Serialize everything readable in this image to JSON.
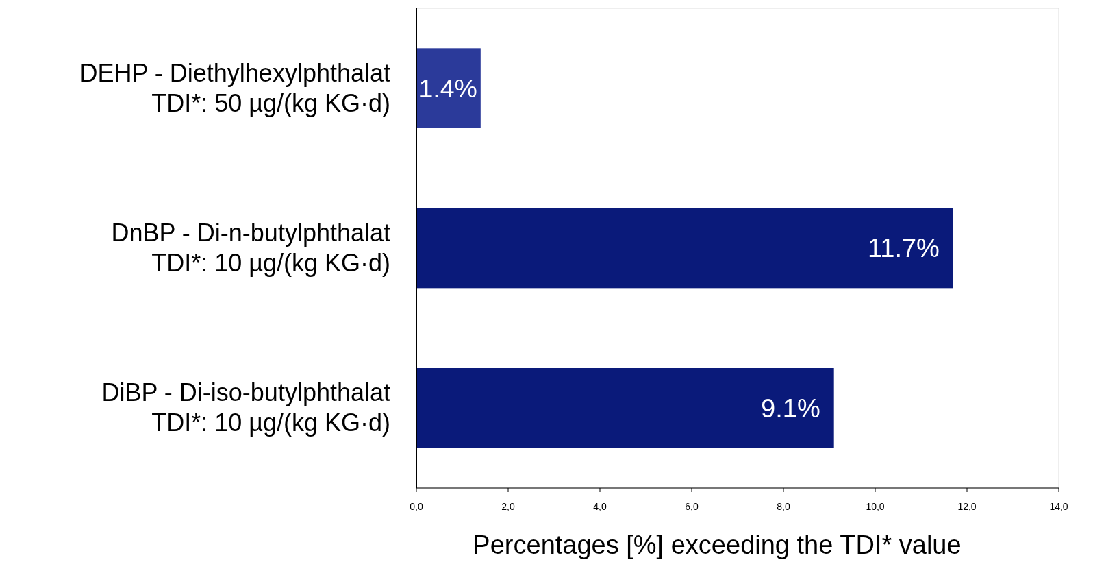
{
  "chart_data": {
    "type": "bar",
    "orientation": "horizontal",
    "xlabel": "Percentages [%] exceeding the TDI* value",
    "categories": [
      "DEHP -   Diethylhexylphthalat\nTDI*: 50 µg/(kg KG·d)",
      "DnBP  -    Di-n-butylphthalat\nTDI*: 10 µg/(kg KG·d)",
      "DiBP - Di-iso-butylphthalat\nTDI*: 10 µg/(kg KG·d)"
    ],
    "values": [
      1.4,
      11.7,
      9.1
    ],
    "colors": [
      "#2b3a9a",
      "#0a1a7a",
      "#0a1a7a"
    ],
    "value_labels": [
      "1.4%",
      "11.7%",
      "9.1%"
    ],
    "xlim": [
      0,
      14
    ],
    "xticks": [
      {
        "value": 0,
        "label": "0,0"
      },
      {
        "value": 2,
        "label": "2,0"
      },
      {
        "value": 4,
        "label": "4,0"
      },
      {
        "value": 6,
        "label": "6,0"
      },
      {
        "value": 8,
        "label": "8,0"
      },
      {
        "value": 10,
        "label": "10,0"
      },
      {
        "value": 12,
        "label": "12,0"
      },
      {
        "value": 14,
        "label": "14,0"
      }
    ],
    "grid": false
  }
}
